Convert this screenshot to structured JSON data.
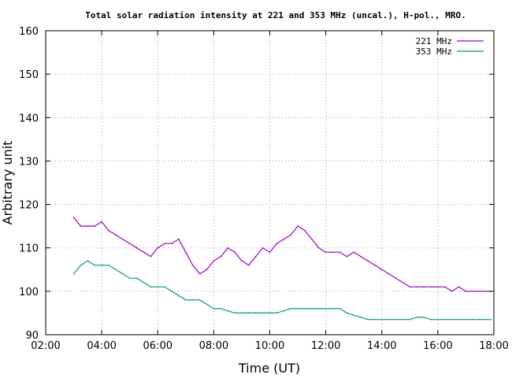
{
  "chart_data": {
    "type": "line",
    "title": "Total solar radiation intensity at 221 and 353 MHz (uncal.), H-pol., MRO.",
    "xlabel": "Time (UT)",
    "ylabel": "Arbitrary unit",
    "xlim": [
      2,
      18
    ],
    "ylim": [
      90,
      160
    ],
    "x_ticks": [
      2,
      4,
      6,
      8,
      10,
      12,
      14,
      16,
      18
    ],
    "x_tick_labels": [
      "02:00",
      "04:00",
      "06:00",
      "08:00",
      "10:00",
      "12:00",
      "14:00",
      "16:00",
      "18:00"
    ],
    "y_ticks": [
      90,
      100,
      110,
      120,
      130,
      140,
      150,
      160
    ],
    "y_tick_labels": [
      "90",
      "100",
      "110",
      "120",
      "130",
      "140",
      "150",
      "160"
    ],
    "grid": true,
    "legend_position": "top-right",
    "series": [
      {
        "name": "221 MHz",
        "color": "#9400d3",
        "x": [
          3.0,
          3.25,
          3.5,
          3.75,
          4.0,
          4.25,
          4.5,
          4.75,
          5.0,
          5.25,
          5.5,
          5.75,
          6.0,
          6.25,
          6.5,
          6.75,
          7.0,
          7.25,
          7.5,
          7.75,
          8.0,
          8.25,
          8.5,
          8.75,
          9.0,
          9.25,
          9.5,
          9.75,
          10.0,
          10.25,
          10.5,
          10.75,
          11.0,
          11.25,
          11.5,
          11.75,
          12.0,
          12.25,
          12.5,
          12.75,
          13.0,
          13.25,
          13.5,
          13.75,
          14.0,
          14.25,
          14.5,
          14.75,
          15.0,
          15.25,
          15.5,
          15.75,
          16.0,
          16.25,
          16.5,
          16.75,
          17.0,
          17.25,
          17.5,
          17.75,
          17.9
        ],
        "values": [
          117,
          115,
          115,
          115,
          116,
          114,
          113,
          112,
          111,
          110,
          109,
          108,
          110,
          111,
          111,
          112,
          109,
          106,
          104,
          105,
          107,
          108,
          110,
          109,
          107,
          106,
          108,
          110,
          109,
          111,
          112,
          113,
          115,
          114,
          112,
          110,
          109,
          109,
          109,
          108,
          109,
          108,
          107,
          106,
          105,
          104,
          103,
          102,
          101,
          101,
          101,
          101,
          101,
          101,
          100,
          101,
          100,
          100,
          100,
          100,
          100
        ]
      },
      {
        "name": "353 MHz",
        "color": "#009e73",
        "x": [
          3.0,
          3.25,
          3.5,
          3.75,
          4.0,
          4.25,
          4.5,
          4.75,
          5.0,
          5.25,
          5.5,
          5.75,
          6.0,
          6.25,
          6.5,
          6.75,
          7.0,
          7.25,
          7.5,
          7.75,
          8.0,
          8.25,
          8.5,
          8.75,
          9.0,
          9.25,
          9.5,
          9.75,
          10.0,
          10.25,
          10.5,
          10.75,
          11.0,
          11.25,
          11.5,
          11.75,
          12.0,
          12.25,
          12.5,
          12.75,
          13.0,
          13.25,
          13.5,
          13.75,
          14.0,
          14.25,
          14.5,
          14.75,
          15.0,
          15.25,
          15.5,
          15.75,
          16.0,
          16.25,
          16.5,
          16.75,
          17.0,
          17.25,
          17.5,
          17.75,
          17.9
        ],
        "values": [
          104,
          106,
          107,
          106,
          106,
          106,
          105,
          104,
          103,
          103,
          102,
          101,
          101,
          101,
          100,
          99,
          98,
          98,
          98,
          97,
          96,
          96,
          95.5,
          95,
          95,
          95,
          95,
          95,
          95,
          95,
          95.5,
          96,
          96,
          96,
          96,
          96,
          96,
          96,
          96,
          95,
          94.5,
          94,
          93.5,
          93.5,
          93.5,
          93.5,
          93.5,
          93.5,
          93.5,
          94,
          94,
          93.5,
          93.5,
          93.5,
          93.5,
          93.5,
          93.5,
          93.5,
          93.5,
          93.5,
          93.5
        ]
      }
    ]
  }
}
